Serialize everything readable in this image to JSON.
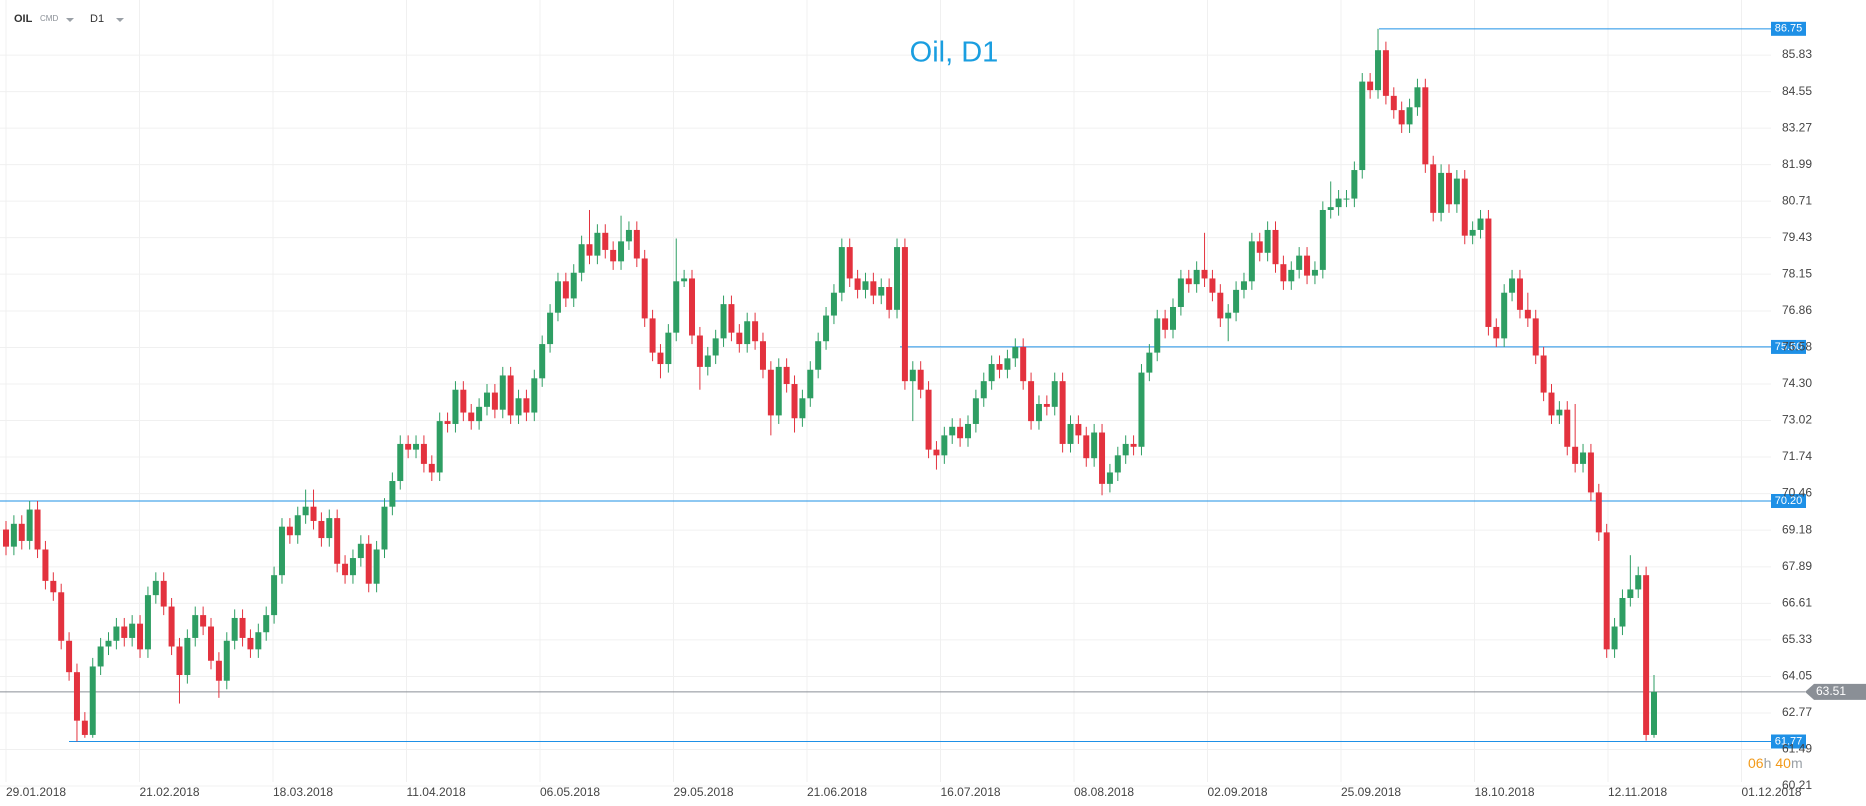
{
  "header": {
    "symbol": "OIL",
    "class": "CMD",
    "interval": "D1"
  },
  "timer": [
    "06",
    "h",
    "40",
    "m"
  ],
  "chart_data": {
    "type": "candlestick",
    "title": "Oil, D1",
    "up_color": "#2e9e63",
    "down_color": "#e3323e",
    "level_color": "#1e90e6",
    "current_color": "#8a8f96",
    "ylim": [
      60.07,
      87.76
    ],
    "yticks": [
      60.21,
      61.49,
      62.77,
      64.05,
      65.33,
      66.61,
      67.89,
      69.18,
      70.46,
      71.74,
      73.02,
      {
        "value": 74.3,
        "label": "74.30"
      },
      75.58,
      76.86,
      78.15,
      79.43,
      80.71,
      81.99,
      83.27,
      84.55,
      85.83
    ],
    "x_labels": [
      "29.01.2018",
      "21.02.2018",
      "18.03.2018",
      "11.04.2018",
      "06.05.2018",
      "29.05.2018",
      "21.06.2018",
      "16.07.2018",
      "08.08.2018",
      "02.09.2018",
      "25.09.2018",
      "18.10.2018",
      "12.11.2018",
      "01.12.2018"
    ],
    "levels": [
      86.75,
      {
        "value": 75.6,
        "label": "75.60"
      },
      {
        "value": 70.2,
        "label": "70.20"
      },
      61.77
    ],
    "current": 63.51,
    "grid": true,
    "ohlc": [
      [
        69.2,
        69.5,
        68.3,
        68.6
      ],
      [
        68.6,
        69.7,
        68.3,
        69.4
      ],
      [
        69.4,
        69.7,
        68.5,
        68.8
      ],
      [
        68.8,
        70.2,
        68.5,
        69.9
      ],
      [
        69.9,
        70.2,
        68.2,
        68.5
      ],
      [
        68.5,
        68.8,
        67.1,
        67.4
      ],
      [
        67.4,
        67.7,
        66.7,
        67.0
      ],
      [
        67.0,
        67.3,
        65.0,
        65.3
      ],
      [
        65.3,
        65.6,
        63.9,
        64.2
      ],
      [
        64.2,
        64.5,
        61.77,
        62.5
      ],
      [
        62.5,
        62.8,
        61.9,
        62.0
      ],
      [
        62.0,
        64.7,
        61.9,
        64.4
      ],
      [
        64.4,
        65.4,
        64.1,
        65.1
      ],
      [
        65.1,
        65.6,
        64.8,
        65.3
      ],
      [
        65.3,
        66.1,
        65.0,
        65.8
      ],
      [
        65.8,
        66.1,
        65.1,
        65.4
      ],
      [
        65.4,
        66.2,
        65.1,
        65.9
      ],
      [
        65.9,
        66.2,
        64.7,
        65.0
      ],
      [
        65.0,
        67.2,
        64.7,
        66.9
      ],
      [
        66.9,
        67.7,
        66.6,
        67.4
      ],
      [
        67.4,
        67.7,
        66.2,
        66.5
      ],
      [
        66.5,
        66.8,
        64.8,
        65.1
      ],
      [
        65.1,
        65.4,
        63.1,
        64.1
      ],
      [
        64.1,
        65.7,
        63.8,
        65.4
      ],
      [
        65.4,
        66.5,
        65.1,
        66.2
      ],
      [
        66.2,
        66.5,
        65.5,
        65.8
      ],
      [
        65.8,
        66.1,
        64.3,
        64.6
      ],
      [
        64.6,
        64.9,
        63.3,
        63.9
      ],
      [
        63.9,
        65.6,
        63.6,
        65.3
      ],
      [
        65.3,
        66.4,
        65.0,
        66.1
      ],
      [
        66.1,
        66.4,
        65.1,
        65.4
      ],
      [
        65.4,
        65.7,
        64.7,
        65.0
      ],
      [
        65.0,
        65.9,
        64.7,
        65.6
      ],
      [
        65.6,
        66.5,
        65.3,
        66.2
      ],
      [
        66.2,
        67.9,
        65.9,
        67.6
      ],
      [
        67.6,
        69.6,
        67.3,
        69.3
      ],
      [
        69.3,
        69.6,
        68.7,
        69.0
      ],
      [
        69.0,
        70.0,
        68.7,
        69.7
      ],
      [
        69.7,
        70.6,
        69.4,
        70.0
      ],
      [
        70.0,
        70.6,
        69.2,
        69.5
      ],
      [
        69.5,
        69.8,
        68.6,
        68.9
      ],
      [
        68.9,
        69.9,
        68.6,
        69.6
      ],
      [
        69.6,
        69.9,
        67.7,
        68.0
      ],
      [
        68.0,
        68.3,
        67.3,
        67.6
      ],
      [
        67.6,
        68.5,
        67.3,
        68.2
      ],
      [
        68.2,
        69.0,
        67.9,
        68.7
      ],
      [
        68.7,
        69.0,
        67.0,
        67.3
      ],
      [
        67.3,
        68.8,
        67.0,
        68.5
      ],
      [
        68.5,
        70.3,
        68.2,
        70.0
      ],
      [
        70.0,
        71.2,
        69.7,
        70.9
      ],
      [
        70.9,
        72.5,
        70.6,
        72.2
      ],
      [
        72.2,
        72.5,
        71.7,
        72.0
      ],
      [
        72.0,
        72.5,
        71.7,
        72.2
      ],
      [
        72.2,
        72.5,
        71.2,
        71.5
      ],
      [
        71.5,
        71.8,
        70.9,
        71.2
      ],
      [
        71.2,
        73.3,
        70.9,
        73.0
      ],
      [
        73.0,
        73.3,
        72.6,
        72.9
      ],
      [
        72.9,
        74.4,
        72.6,
        74.1
      ],
      [
        74.1,
        74.4,
        73.0,
        73.3
      ],
      [
        73.3,
        73.6,
        72.7,
        73.0
      ],
      [
        73.0,
        73.8,
        72.7,
        73.5
      ],
      [
        73.5,
        74.3,
        73.2,
        74.0
      ],
      [
        74.0,
        74.3,
        73.1,
        73.4
      ],
      [
        73.4,
        74.9,
        73.1,
        74.6
      ],
      [
        74.6,
        74.9,
        72.9,
        73.2
      ],
      [
        73.2,
        74.1,
        72.9,
        73.8
      ],
      [
        73.8,
        74.1,
        73.0,
        73.3
      ],
      [
        73.3,
        74.8,
        73.0,
        74.5
      ],
      [
        74.5,
        76.0,
        74.2,
        75.7
      ],
      [
        75.7,
        77.1,
        75.4,
        76.8
      ],
      [
        76.8,
        78.2,
        76.5,
        77.9
      ],
      [
        77.9,
        78.2,
        77.0,
        77.3
      ],
      [
        77.3,
        78.5,
        77.0,
        78.2
      ],
      [
        78.2,
        79.5,
        77.9,
        79.2
      ],
      [
        79.2,
        80.4,
        78.5,
        78.8
      ],
      [
        78.8,
        79.9,
        78.5,
        79.6
      ],
      [
        79.6,
        79.9,
        78.7,
        79.0
      ],
      [
        79.0,
        79.3,
        78.3,
        78.6
      ],
      [
        78.6,
        80.2,
        78.3,
        79.3
      ],
      [
        79.3,
        80.0,
        79.0,
        79.7
      ],
      [
        79.7,
        80.0,
        78.4,
        78.7
      ],
      [
        78.7,
        79.0,
        76.3,
        76.6
      ],
      [
        76.6,
        76.9,
        75.1,
        75.4
      ],
      [
        75.4,
        75.7,
        74.5,
        75.0
      ],
      [
        75.0,
        76.4,
        74.7,
        76.1
      ],
      [
        76.1,
        79.4,
        75.8,
        77.9
      ],
      [
        77.9,
        78.3,
        77.7,
        78.0
      ],
      [
        78.0,
        78.3,
        75.7,
        76.0
      ],
      [
        76.0,
        76.3,
        74.1,
        74.9
      ],
      [
        74.9,
        75.6,
        74.6,
        75.3
      ],
      [
        75.3,
        76.2,
        75.0,
        75.9
      ],
      [
        75.9,
        77.4,
        75.6,
        77.1
      ],
      [
        77.1,
        77.4,
        75.8,
        76.1
      ],
      [
        76.1,
        76.4,
        75.4,
        75.7
      ],
      [
        75.7,
        76.8,
        75.4,
        76.5
      ],
      [
        76.5,
        76.8,
        75.5,
        75.8
      ],
      [
        75.8,
        76.1,
        74.5,
        74.8
      ],
      [
        74.8,
        75.1,
        72.5,
        73.2
      ],
      [
        73.2,
        75.2,
        72.9,
        74.9
      ],
      [
        74.9,
        75.2,
        74.0,
        74.3
      ],
      [
        74.3,
        74.6,
        72.6,
        73.1
      ],
      [
        73.1,
        74.1,
        72.8,
        73.8
      ],
      [
        73.8,
        75.1,
        73.5,
        74.8
      ],
      [
        74.8,
        76.1,
        74.5,
        75.8
      ],
      [
        75.8,
        77.0,
        75.5,
        76.7
      ],
      [
        76.7,
        77.8,
        76.4,
        77.5
      ],
      [
        77.5,
        79.4,
        77.2,
        79.1
      ],
      [
        79.1,
        79.4,
        77.7,
        78.0
      ],
      [
        78.0,
        78.3,
        77.3,
        77.6
      ],
      [
        77.6,
        78.2,
        77.3,
        77.9
      ],
      [
        77.9,
        78.2,
        77.1,
        77.4
      ],
      [
        77.4,
        78.0,
        77.1,
        77.7
      ],
      [
        77.7,
        78.0,
        76.6,
        76.9
      ],
      [
        76.9,
        79.4,
        76.6,
        79.1
      ],
      [
        79.1,
        79.4,
        74.1,
        74.4
      ],
      [
        74.4,
        75.1,
        73.0,
        74.8
      ],
      [
        74.8,
        75.1,
        73.8,
        74.1
      ],
      [
        74.1,
        74.4,
        71.7,
        72.0
      ],
      [
        72.0,
        72.3,
        71.3,
        71.8
      ],
      [
        71.8,
        72.8,
        71.5,
        72.5
      ],
      [
        72.5,
        73.1,
        72.2,
        72.8
      ],
      [
        72.8,
        73.1,
        72.1,
        72.4
      ],
      [
        72.4,
        73.2,
        72.1,
        72.9
      ],
      [
        72.9,
        74.1,
        72.6,
        73.8
      ],
      [
        73.8,
        74.7,
        73.5,
        74.4
      ],
      [
        74.4,
        75.3,
        74.1,
        75.0
      ],
      [
        75.0,
        75.3,
        74.5,
        74.8
      ],
      [
        74.8,
        75.5,
        74.5,
        75.2
      ],
      [
        75.2,
        75.9,
        74.9,
        75.6
      ],
      [
        75.6,
        75.9,
        74.1,
        74.4
      ],
      [
        74.4,
        74.7,
        72.7,
        73.0
      ],
      [
        73.0,
        73.9,
        72.7,
        73.6
      ],
      [
        73.6,
        73.9,
        73.2,
        73.5
      ],
      [
        73.5,
        74.7,
        73.2,
        74.4
      ],
      [
        74.4,
        74.7,
        71.9,
        72.2
      ],
      [
        72.2,
        73.2,
        71.9,
        72.9
      ],
      [
        72.9,
        73.2,
        72.2,
        72.5
      ],
      [
        72.5,
        72.8,
        71.4,
        71.7
      ],
      [
        71.7,
        72.9,
        71.4,
        72.6
      ],
      [
        72.6,
        72.9,
        70.4,
        70.8
      ],
      [
        70.8,
        71.5,
        70.5,
        71.2
      ],
      [
        71.2,
        72.1,
        70.9,
        71.8
      ],
      [
        71.8,
        72.5,
        71.5,
        72.2
      ],
      [
        72.2,
        72.5,
        71.8,
        72.1
      ],
      [
        72.1,
        75.0,
        71.8,
        74.7
      ],
      [
        74.7,
        75.7,
        74.4,
        75.4
      ],
      [
        75.4,
        76.9,
        75.1,
        76.6
      ],
      [
        76.6,
        76.9,
        75.9,
        76.2
      ],
      [
        76.2,
        77.3,
        75.9,
        77.0
      ],
      [
        77.0,
        78.3,
        76.7,
        78.0
      ],
      [
        78.0,
        78.3,
        77.5,
        77.8
      ],
      [
        77.8,
        78.6,
        77.5,
        78.3
      ],
      [
        78.3,
        79.6,
        77.7,
        78.0
      ],
      [
        78.0,
        78.3,
        77.2,
        77.5
      ],
      [
        77.5,
        77.8,
        76.3,
        76.6
      ],
      [
        76.6,
        77.1,
        75.8,
        76.8
      ],
      [
        76.8,
        77.9,
        76.5,
        77.6
      ],
      [
        77.6,
        78.2,
        77.3,
        77.9
      ],
      [
        77.9,
        79.6,
        77.6,
        79.3
      ],
      [
        79.3,
        79.6,
        78.6,
        78.9
      ],
      [
        78.9,
        80.0,
        78.6,
        79.7
      ],
      [
        79.7,
        80.0,
        78.2,
        78.5
      ],
      [
        78.5,
        78.8,
        77.6,
        77.9
      ],
      [
        77.9,
        78.6,
        77.6,
        78.3
      ],
      [
        78.3,
        79.1,
        78.0,
        78.8
      ],
      [
        78.8,
        79.1,
        77.8,
        78.1
      ],
      [
        78.1,
        78.6,
        77.8,
        78.3
      ],
      [
        78.3,
        80.7,
        78.0,
        80.4
      ],
      [
        80.4,
        81.4,
        80.1,
        80.5
      ],
      [
        80.5,
        81.1,
        80.2,
        80.8
      ],
      [
        80.8,
        81.1,
        80.5,
        80.8
      ],
      [
        80.8,
        82.1,
        80.5,
        81.8
      ],
      [
        81.8,
        85.2,
        81.5,
        84.9
      ],
      [
        84.9,
        85.2,
        84.3,
        84.6
      ],
      [
        84.6,
        86.75,
        84.3,
        86.0
      ],
      [
        86.0,
        86.3,
        84.1,
        84.4
      ],
      [
        84.4,
        84.7,
        83.6,
        83.9
      ],
      [
        83.9,
        84.2,
        83.1,
        83.4
      ],
      [
        83.4,
        84.3,
        83.1,
        84.0
      ],
      [
        84.0,
        85.0,
        83.7,
        84.7
      ],
      [
        84.7,
        85.0,
        81.7,
        82.0
      ],
      [
        82.0,
        82.3,
        80.0,
        80.3
      ],
      [
        80.3,
        82.0,
        80.0,
        81.7
      ],
      [
        81.7,
        82.0,
        80.3,
        80.6
      ],
      [
        80.6,
        81.8,
        80.3,
        81.5
      ],
      [
        81.5,
        81.8,
        79.2,
        79.5
      ],
      [
        79.5,
        80.0,
        79.2,
        79.7
      ],
      [
        79.7,
        80.4,
        79.4,
        80.1
      ],
      [
        80.1,
        80.4,
        76.0,
        76.3
      ],
      [
        76.3,
        76.6,
        75.6,
        75.9
      ],
      [
        75.9,
        77.8,
        75.6,
        77.5
      ],
      [
        77.5,
        78.3,
        77.2,
        78.0
      ],
      [
        78.0,
        78.3,
        76.6,
        76.9
      ],
      [
        76.9,
        77.5,
        76.3,
        76.6
      ],
      [
        76.6,
        76.9,
        75.0,
        75.3
      ],
      [
        75.3,
        75.6,
        73.7,
        74.0
      ],
      [
        74.0,
        74.3,
        72.9,
        73.2
      ],
      [
        73.2,
        73.7,
        72.9,
        73.4
      ],
      [
        73.4,
        73.7,
        71.8,
        72.1
      ],
      [
        72.1,
        73.6,
        71.2,
        71.5
      ],
      [
        71.5,
        72.2,
        71.2,
        71.9
      ],
      [
        71.9,
        72.2,
        70.2,
        70.5
      ],
      [
        70.5,
        70.8,
        68.8,
        69.1
      ],
      [
        69.1,
        69.4,
        64.7,
        65.0
      ],
      [
        65.0,
        66.1,
        64.7,
        65.8
      ],
      [
        65.8,
        67.1,
        65.5,
        66.8
      ],
      [
        66.8,
        68.3,
        66.5,
        67.1
      ],
      [
        67.1,
        67.9,
        66.8,
        67.6
      ],
      [
        67.6,
        67.9,
        61.8,
        62.0
      ],
      [
        62.0,
        64.1,
        61.9,
        63.51
      ]
    ]
  }
}
